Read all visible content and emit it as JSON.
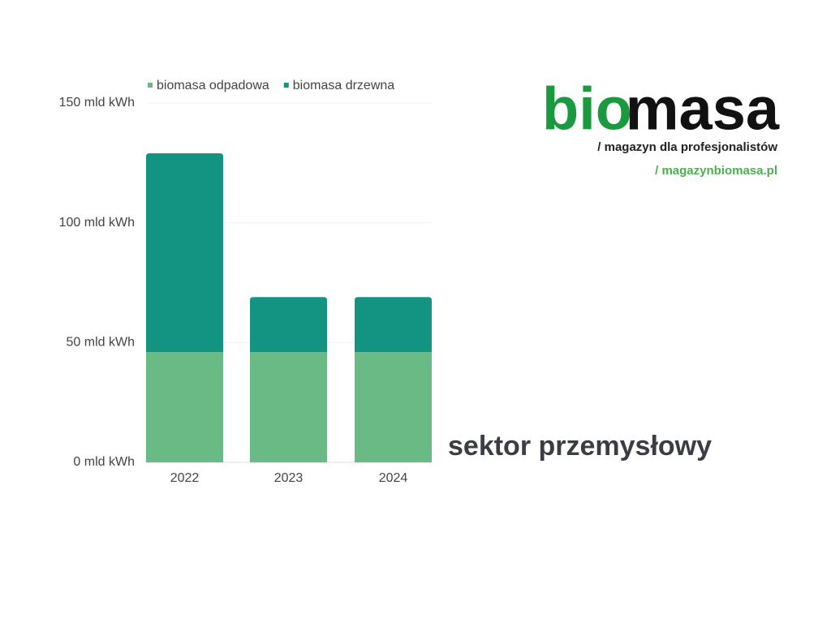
{
  "chart_data": {
    "type": "stacked-bar",
    "categories": [
      "2022",
      "2023",
      "2024"
    ],
    "series": [
      {
        "name": "biomasa odpadowa",
        "color": "#6aba85",
        "values": [
          46,
          46,
          46
        ]
      },
      {
        "name": "biomasa drzewna",
        "color": "#139382",
        "values": [
          83,
          23,
          23
        ]
      }
    ],
    "ylim": [
      0,
      150
    ],
    "yticks": [
      {
        "value": 0,
        "label": "0 mld kWh"
      },
      {
        "value": 50,
        "label": "50 mld kWh"
      },
      {
        "value": 100,
        "label": "100 mld kWh"
      },
      {
        "value": 150,
        "label": "150 mld kWh"
      }
    ],
    "grid": true,
    "annotation": "sektor przemysłowy"
  },
  "logo": {
    "bio": "bio",
    "masa": "masa",
    "tagline": "/ magazyn dla profesjonalistów",
    "url": "/ magazynbiomasa.pl"
  }
}
